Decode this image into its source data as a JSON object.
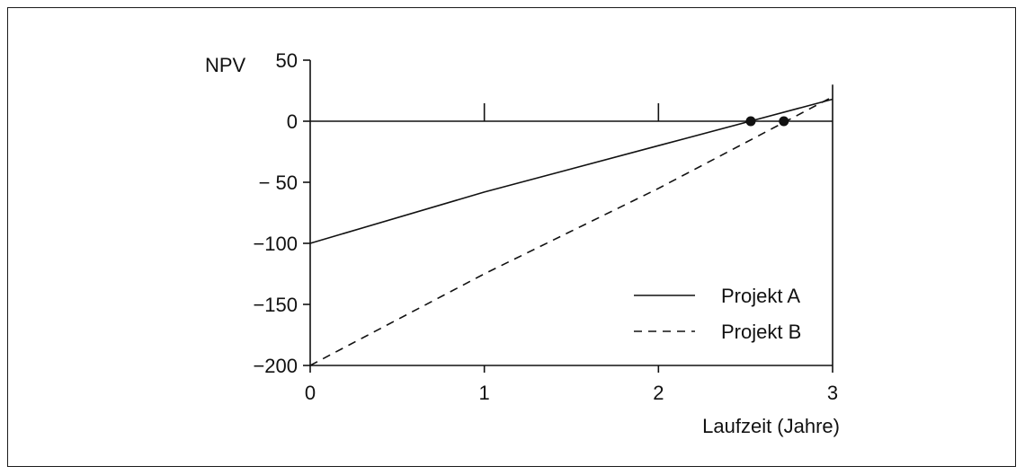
{
  "chart_data": {
    "type": "line",
    "title": "",
    "ylabel": "NPV",
    "xlabel": "Laufzeit (Jahre)",
    "xlim": [
      0,
      3
    ],
    "ylim": [
      -200,
      50
    ],
    "x_ticks": [
      "0",
      "1",
      "2",
      "3"
    ],
    "y_ticks": [
      "50",
      "0",
      "− 50",
      "−100",
      "−150",
      "−200"
    ],
    "y_tick_values": [
      50,
      0,
      -50,
      -100,
      -150,
      -200
    ],
    "x_tick_values": [
      0,
      1,
      2,
      3
    ],
    "zero_line_tick_marks_x": [
      1,
      2
    ],
    "grid": false,
    "legend": "bottom-right",
    "series": [
      {
        "name": "Projekt A",
        "style": "solid",
        "x": [
          0,
          1,
          2,
          3
        ],
        "y": [
          -100,
          -58,
          -20,
          18
        ]
      },
      {
        "name": "Projekt B",
        "style": "dashed",
        "x": [
          0,
          1,
          2,
          3
        ],
        "y": [
          -200,
          -125,
          -55,
          20
        ]
      }
    ],
    "markers": [
      {
        "x": 2.53,
        "y": 0
      },
      {
        "x": 2.72,
        "y": 0
      }
    ]
  }
}
